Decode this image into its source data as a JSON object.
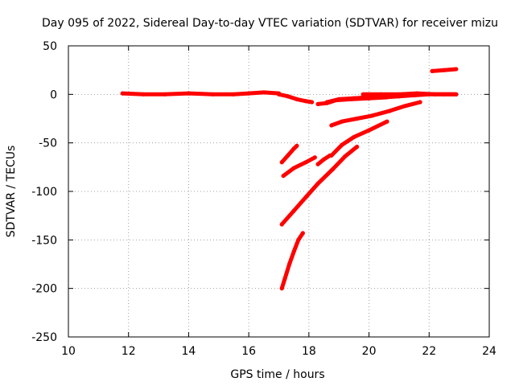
{
  "chart_data": {
    "type": "line",
    "title": "Day 095 of 2022, Sidereal Day-to-day VTEC variation (SDTVAR) for receiver mizu",
    "xlabel": "GPS time / hours",
    "ylabel": "SDTVAR / TECUs",
    "xlim": [
      10,
      24
    ],
    "ylim": [
      -250,
      50
    ],
    "xticks": [
      "10",
      "12",
      "14",
      "16",
      "18",
      "20",
      "22",
      "24"
    ],
    "yticks": [
      "50",
      "0",
      "-50",
      "-100",
      "-150",
      "-200",
      "-250"
    ],
    "grid": true,
    "legend": "none",
    "color": "#ff0000",
    "series": [
      {
        "x": [
          11.8,
          12.5,
          13.2,
          14.0,
          14.8,
          15.5,
          16.0,
          16.5,
          17.0
        ],
        "y": [
          1,
          0,
          0,
          1,
          0,
          0,
          1,
          2,
          1
        ]
      },
      {
        "x": [
          17.0,
          17.3,
          17.6,
          17.9,
          18.1
        ],
        "y": [
          0,
          -2,
          -5,
          -7,
          -8
        ]
      },
      {
        "x": [
          18.3,
          18.6,
          18.9,
          19.4,
          20.0,
          20.6
        ],
        "y": [
          -10,
          -9,
          -6,
          -5,
          -4,
          -3
        ]
      },
      {
        "x": [
          18.6,
          19.0,
          19.5,
          20.0,
          20.5,
          21.0,
          21.5,
          22.0,
          22.5,
          22.9
        ],
        "y": [
          -8,
          -5,
          -4,
          -3,
          -3,
          -2,
          -1,
          0,
          0,
          0
        ]
      },
      {
        "x": [
          19.8,
          20.4,
          21.0,
          21.6,
          22.2,
          22.9
        ],
        "y": [
          0,
          0,
          0,
          1,
          0,
          0
        ]
      },
      {
        "x": [
          18.75,
          19.1,
          19.6,
          20.1,
          20.7,
          21.2,
          21.7
        ],
        "y": [
          -32,
          -28,
          -25,
          -22,
          -17,
          -12,
          -8
        ]
      },
      {
        "x": [
          22.1,
          22.5,
          22.9
        ],
        "y": [
          24,
          25,
          26
        ]
      },
      {
        "x": [
          17.1,
          17.3,
          17.5,
          17.6
        ],
        "y": [
          -70,
          -63,
          -56,
          -53
        ]
      },
      {
        "x": [
          17.15,
          17.5,
          17.9,
          18.2
        ],
        "y": [
          -84,
          -76,
          -70,
          -65
        ]
      },
      {
        "x": [
          18.3,
          18.5,
          18.7
        ],
        "y": [
          -72,
          -67,
          -63
        ]
      },
      {
        "x": [
          18.75,
          19.1,
          19.5,
          20.0,
          20.6
        ],
        "y": [
          -63,
          -52,
          -44,
          -37,
          -28
        ]
      },
      {
        "x": [
          17.1,
          17.5,
          17.9,
          18.3,
          18.8,
          19.2,
          19.6
        ],
        "y": [
          -134,
          -120,
          -106,
          -92,
          -77,
          -64,
          -54
        ]
      },
      {
        "x": [
          17.1,
          17.2,
          17.35,
          17.5,
          17.65,
          17.8
        ],
        "y": [
          -200,
          -190,
          -175,
          -162,
          -150,
          -143
        ]
      }
    ]
  }
}
